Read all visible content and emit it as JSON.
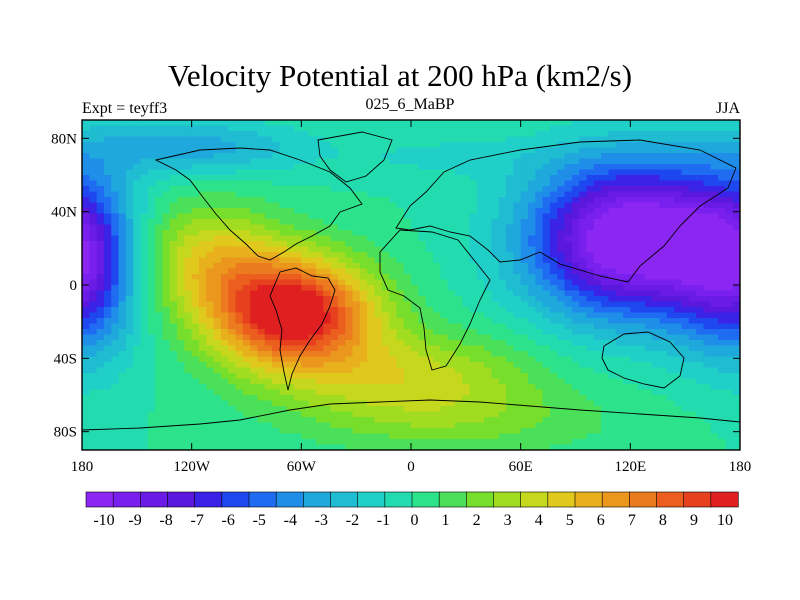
{
  "chart_data": {
    "type": "heatmap",
    "title": "Velocity Potential at 200 hPa (km2/s)",
    "left_string": "Expt = teyff3",
    "center_string": "025_6_MaBP",
    "right_string": "JJA",
    "x_axis": {
      "range": [
        -180,
        180
      ],
      "ticks": [
        -180,
        -120,
        -60,
        0,
        60,
        120,
        180
      ],
      "tick_labels": [
        "180",
        "120W",
        "60W",
        "0",
        "60E",
        "120E",
        "180"
      ]
    },
    "y_axis": {
      "range": [
        -90,
        90
      ],
      "ticks": [
        80,
        40,
        0,
        -40,
        -80
      ],
      "tick_labels": [
        "80N",
        "40N",
        "0",
        "40S",
        "80S"
      ]
    },
    "colorbar": {
      "levels": [
        -10,
        -9,
        -8,
        -7,
        -6,
        -5,
        -4,
        -3,
        -2,
        -1,
        0,
        1,
        2,
        3,
        4,
        5,
        6,
        7,
        8,
        9,
        10
      ],
      "labels": [
        "-10",
        "-9",
        "-8",
        "-7",
        "-6",
        "-5",
        "-4",
        "-3",
        "-2",
        "-1",
        "0",
        "1",
        "2",
        "3",
        "4",
        "5",
        "6",
        "7",
        "8",
        "9",
        "10"
      ],
      "colors": [
        "#8c26f2",
        "#7a20ee",
        "#6a1ce6",
        "#5a18dc",
        "#3a22e6",
        "#1f47f0",
        "#1f6cf2",
        "#1f8ee8",
        "#1fa8dc",
        "#1fbcd2",
        "#20cfc8",
        "#22dcb0",
        "#2ce28a",
        "#4ae05a",
        "#78de2c",
        "#a2dc20",
        "#c6d81e",
        "#e0c81c",
        "#e8b01c",
        "#eb961c",
        "#ec7a1e",
        "#ec5e1e",
        "#e6401e",
        "#e02020"
      ]
    },
    "field_centers": [
      {
        "name": "Eastern Hemisphere minimum (Asia-Pacific)",
        "lon": 120,
        "lat": 20,
        "value": -10
      },
      {
        "name": "Western Hemisphere maximum (Atlantic / South America)",
        "lon": -60,
        "lat": -20,
        "value": 10
      }
    ]
  }
}
